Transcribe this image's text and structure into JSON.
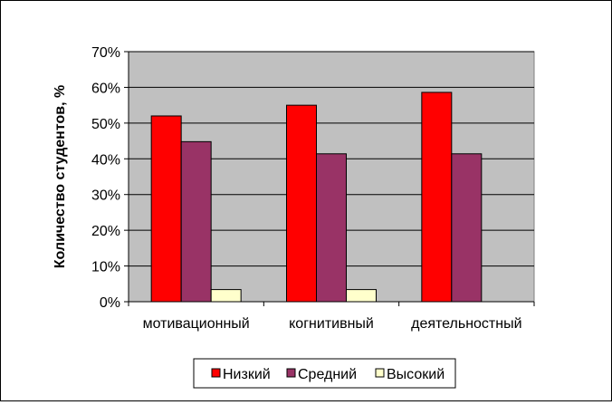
{
  "chart_data": {
    "type": "bar",
    "categories": [
      "мотивационный",
      "когнитивный",
      "деятельностный"
    ],
    "series": [
      {
        "name": "Низкий",
        "color": "#ff0000",
        "values": [
          52,
          55,
          58.6
        ]
      },
      {
        "name": "Средний",
        "color": "#993366",
        "values": [
          44.8,
          41.4,
          41.4
        ]
      },
      {
        "name": "Высокий",
        "color": "#ffffcc",
        "values": [
          3.4,
          3.4,
          0
        ]
      }
    ],
    "title": "",
    "xlabel": "",
    "ylabel": "Количество студентов, %",
    "ylim": [
      0,
      70
    ],
    "yticks": [
      0,
      10,
      20,
      30,
      40,
      50,
      60,
      70
    ],
    "ytick_labels": [
      "0%",
      "10%",
      "20%",
      "30%",
      "40%",
      "50%",
      "60%",
      "70%"
    ],
    "grid": true,
    "plot_background": "#c0c0c0",
    "legend_position": "bottom"
  }
}
